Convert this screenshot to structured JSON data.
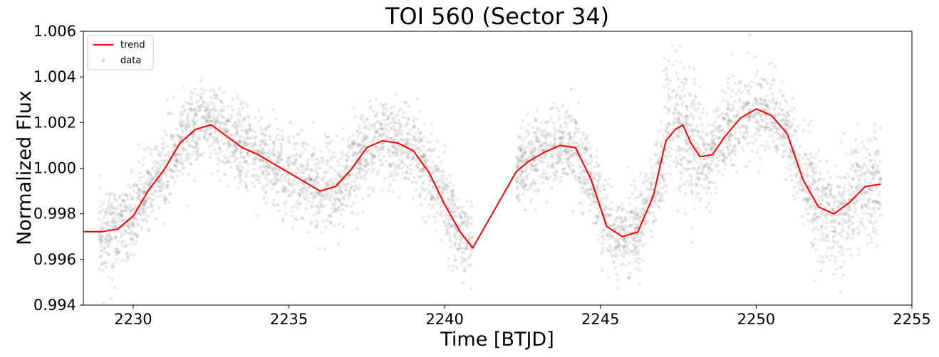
{
  "chart_data": {
    "type": "scatter",
    "title": "TOI 560 (Sector 34)",
    "xlabel": "Time [BTJD]",
    "ylabel": "Normalized Flux",
    "xlim": [
      2228.4,
      2255
    ],
    "ylim": [
      0.994,
      1.006
    ],
    "xticks": [
      2230,
      2235,
      2240,
      2245,
      2250,
      2255
    ],
    "yticks": [
      0.994,
      0.996,
      0.998,
      1.0,
      1.002,
      1.004,
      1.006
    ],
    "xtick_labels": [
      "2230",
      "2235",
      "2240",
      "2245",
      "2250",
      "2255"
    ],
    "ytick_labels": [
      "0.994",
      "0.996",
      "0.998",
      "1.000",
      "1.002",
      "1.004",
      "1.006"
    ],
    "grid": false,
    "legend_position": "top-left",
    "colors": {
      "trend": "#ff0000",
      "data": "#808080"
    },
    "series": [
      {
        "name": "trend",
        "kind": "line",
        "x": [
          2228.4,
          2229.0,
          2229.5,
          2230.0,
          2230.5,
          2231.0,
          2231.5,
          2232.0,
          2232.5,
          2233.0,
          2233.5,
          2234.0,
          2234.5,
          2235.0,
          2235.5,
          2236.0,
          2236.5,
          2237.0,
          2237.5,
          2238.0,
          2238.5,
          2239.0,
          2239.5,
          2240.0,
          2240.5,
          2240.9,
          2242.3,
          2242.7,
          2243.2,
          2243.7,
          2244.2,
          2244.7,
          2245.2,
          2245.7,
          2246.2,
          2246.7,
          2247.1,
          2247.4,
          2247.65,
          2247.9,
          2248.2,
          2248.6,
          2249.0,
          2249.5,
          2250.0,
          2250.5,
          2251.0,
          2251.5,
          2252.0,
          2252.5,
          2253.0,
          2253.5,
          2254.0
        ],
        "y": [
          0.99722,
          0.99722,
          0.99733,
          0.9979,
          0.99905,
          0.99995,
          1.0011,
          1.0017,
          1.0019,
          1.0014,
          1.0009,
          1.0006,
          1.0002,
          0.9998,
          0.9994,
          0.999,
          0.9992,
          0.99995,
          1.0009,
          1.0012,
          1.0011,
          1.00075,
          0.9998,
          0.9984,
          0.9972,
          0.9965,
          0.99985,
          1.0003,
          1.0007,
          1.001,
          1.0009,
          0.9995,
          0.99745,
          0.997,
          0.9972,
          0.9988,
          1.0012,
          1.0017,
          1.0019,
          1.0011,
          1.0005,
          1.0006,
          1.0014,
          1.0022,
          1.0026,
          1.0023,
          1.0015,
          0.9995,
          0.9983,
          0.998,
          0.9985,
          0.9992,
          0.9993
        ]
      },
      {
        "name": "data",
        "kind": "scatter",
        "description_segments": [
          [
            2228.9,
            2240.9
          ],
          [
            2242.3,
            2254.0
          ]
        ],
        "scatter_sigma": 0.0009,
        "approx_points": 5000
      }
    ]
  }
}
